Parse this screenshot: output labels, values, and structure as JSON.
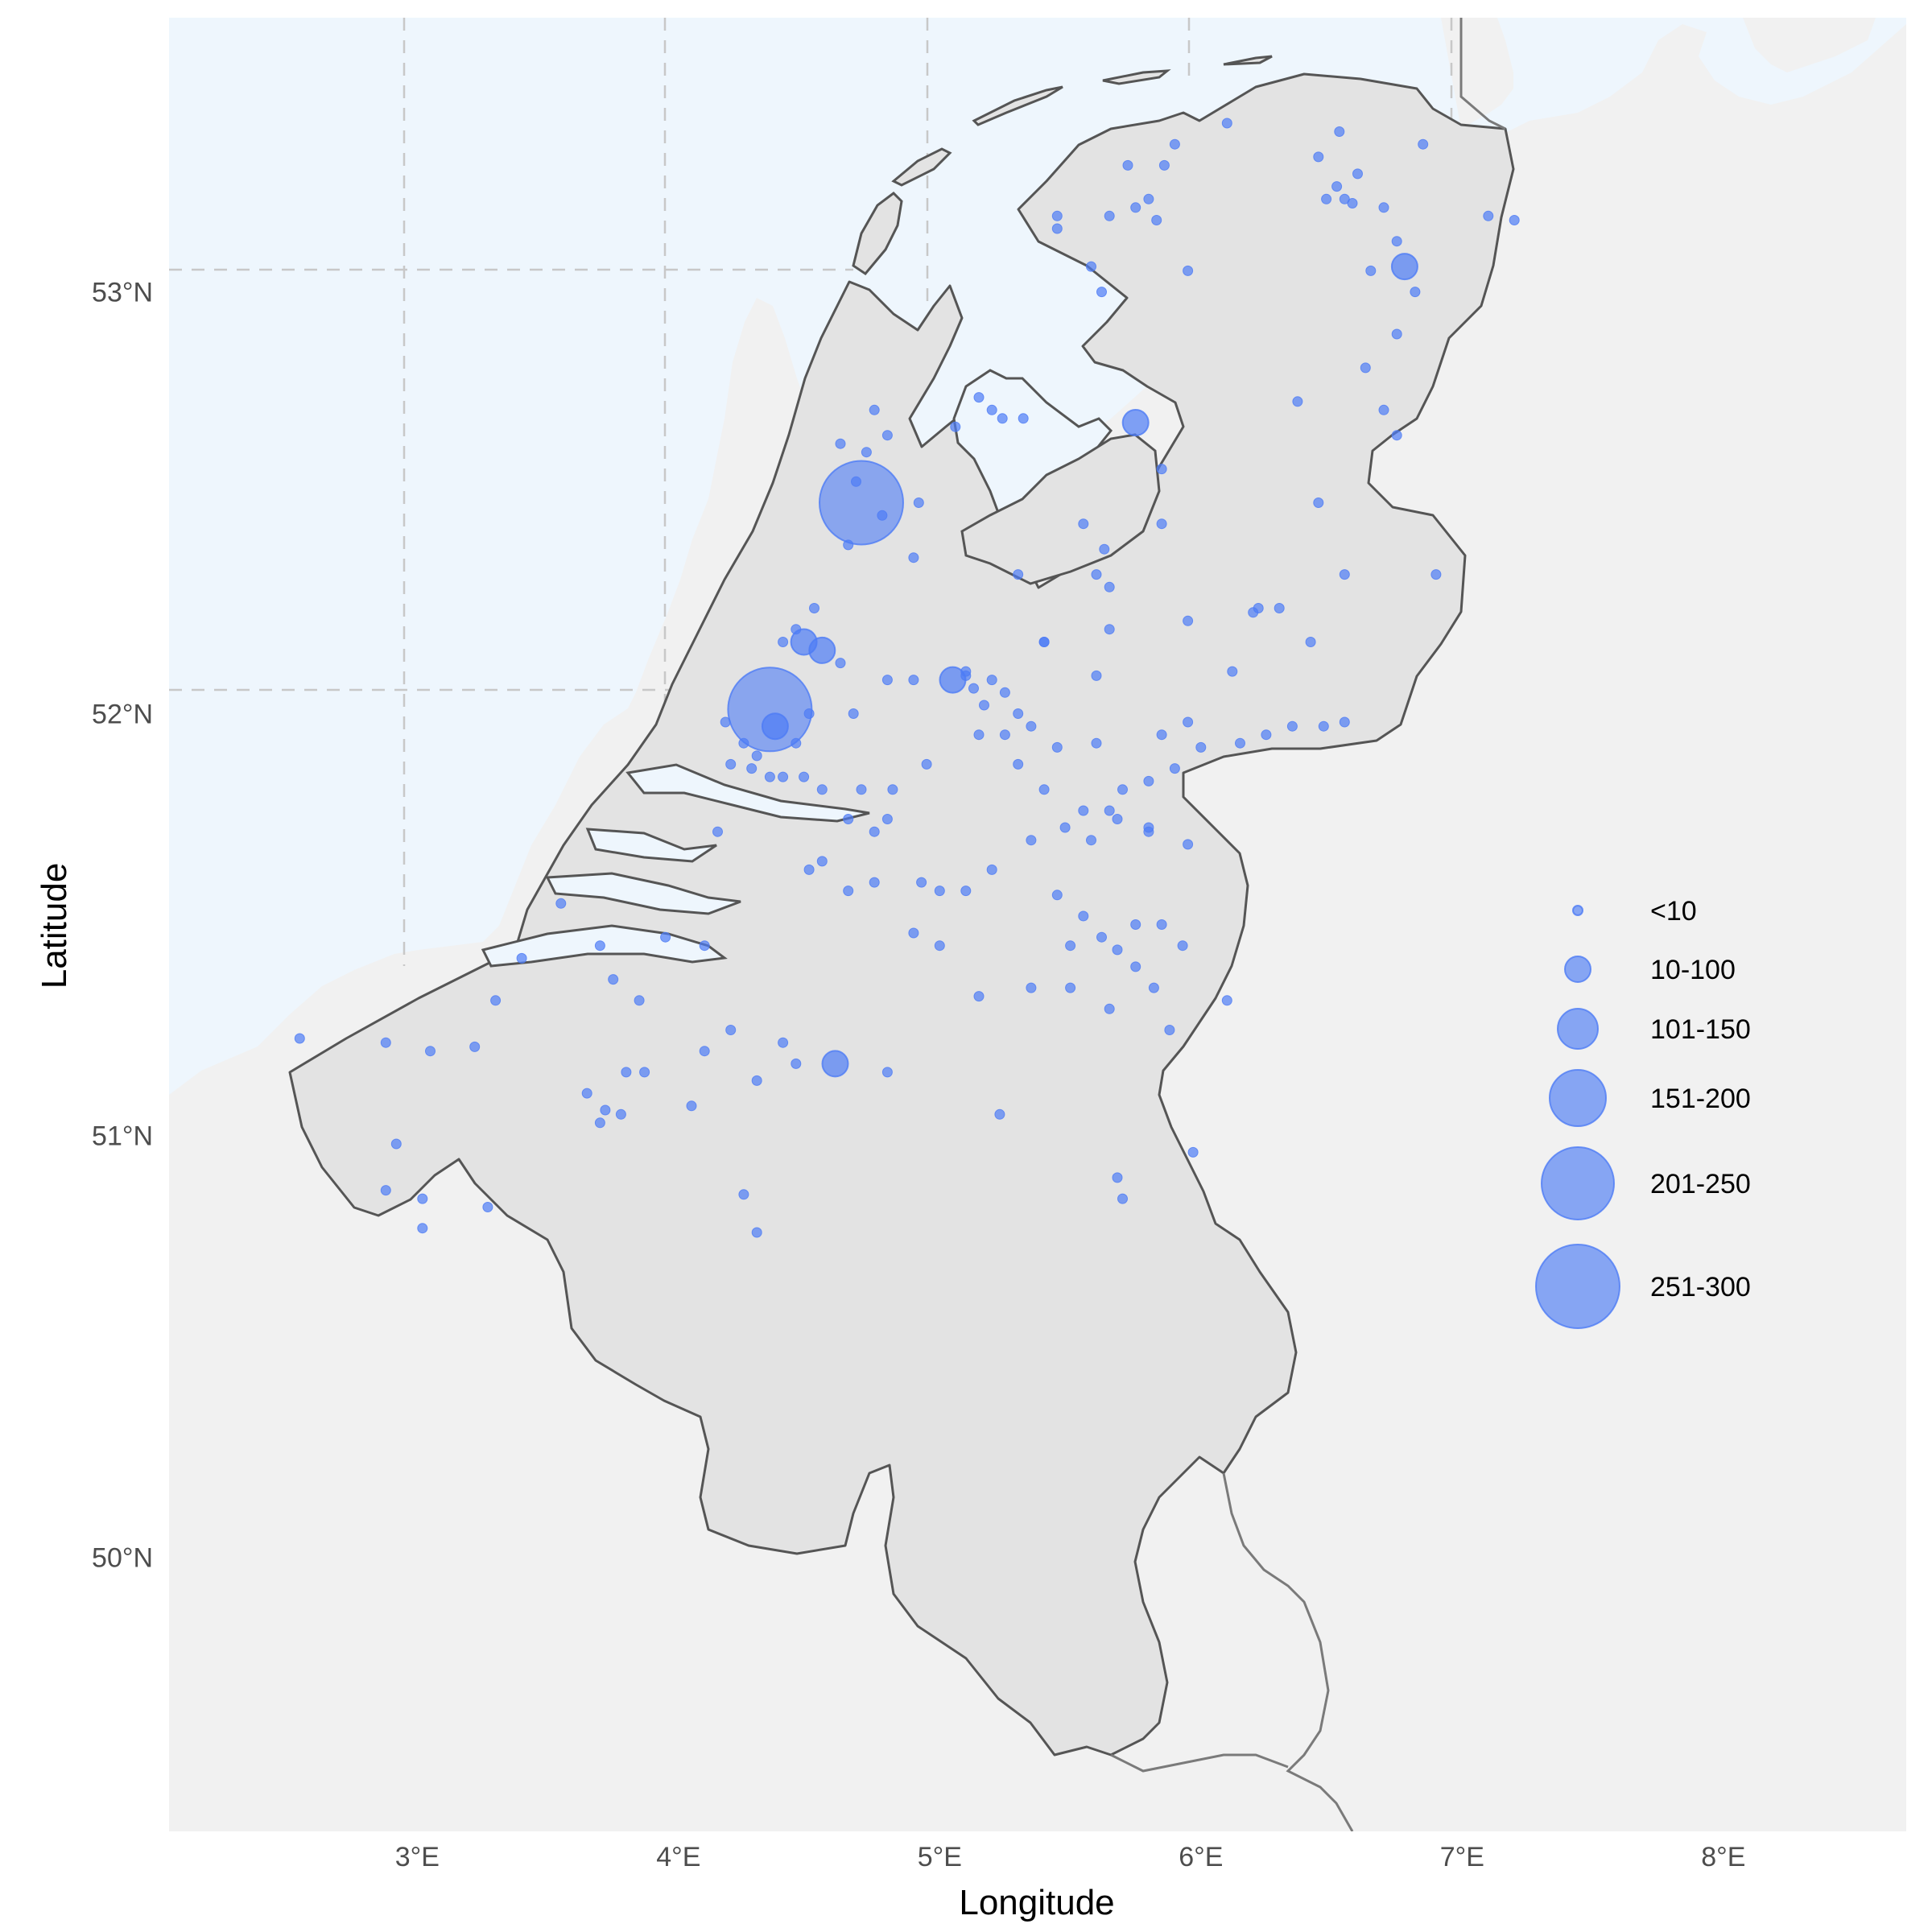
{
  "chart_data": {
    "type": "scatter",
    "subtype": "bubble-map",
    "region": "Netherlands and Belgium",
    "xlabel": "Longitude",
    "ylabel": "Latitude",
    "xlim": [
      2.05,
      8.7
    ],
    "ylim": [
      49.35,
      53.65
    ],
    "x_ticks": [
      3,
      4,
      5,
      6,
      7,
      8
    ],
    "x_tick_labels": [
      "3°E",
      "4°E",
      "5°E",
      "6°E",
      "7°E",
      "8°E"
    ],
    "y_ticks": [
      50,
      51,
      52,
      53
    ],
    "y_tick_labels": [
      "50°N",
      "51°N",
      "52°N",
      "53°N"
    ],
    "grid": "dashed, over sea only",
    "legend_position": "right",
    "colors": {
      "point": "#4d7cf5",
      "sea": "#eef6fd",
      "land": "#e3e3e3",
      "outside_land": "#f1f1f1",
      "border": "#555555"
    },
    "legend": [
      {
        "label": "<10",
        "size_class": 1
      },
      {
        "label": "10-100",
        "size_class": 2
      },
      {
        "label": "101-150",
        "size_class": 3
      },
      {
        "label": "151-200",
        "size_class": 4
      },
      {
        "label": "201-250",
        "size_class": 5
      },
      {
        "label": "251-300",
        "size_class": 6
      }
    ],
    "points": [
      [
        4.7,
        52.5,
        6
      ],
      [
        4.35,
        52.01,
        6
      ],
      [
        4.55,
        52.15,
        2
      ],
      [
        4.48,
        52.17,
        2
      ],
      [
        5.05,
        52.08,
        2
      ],
      [
        4.6,
        51.17,
        2
      ],
      [
        5.75,
        52.69,
        2
      ],
      [
        6.78,
        53.06,
        2
      ],
      [
        4.37,
        51.97,
        2
      ],
      [
        5.1,
        52.09,
        1
      ],
      [
        4.68,
        52.55,
        1
      ],
      [
        4.72,
        52.62,
        1
      ],
      [
        4.65,
        52.4,
        1
      ],
      [
        4.78,
        52.47,
        1
      ],
      [
        4.9,
        52.37,
        1
      ],
      [
        4.92,
        52.5,
        1
      ],
      [
        5.15,
        52.75,
        1
      ],
      [
        5.24,
        52.7,
        1
      ],
      [
        5.32,
        52.7,
        1
      ],
      [
        5.06,
        52.68,
        1
      ],
      [
        5.2,
        52.72,
        1
      ],
      [
        4.75,
        52.72,
        1
      ],
      [
        4.8,
        52.66,
        1
      ],
      [
        4.62,
        52.64,
        1
      ],
      [
        5.75,
        53.2,
        1
      ],
      [
        5.8,
        53.22,
        1
      ],
      [
        5.83,
        53.17,
        1
      ],
      [
        5.65,
        53.18,
        1
      ],
      [
        5.45,
        53.18,
        1
      ],
      [
        5.58,
        53.06,
        1
      ],
      [
        5.86,
        53.3,
        1
      ],
      [
        5.72,
        53.3,
        1
      ],
      [
        6.1,
        53.4,
        1
      ],
      [
        5.9,
        53.35,
        1
      ],
      [
        5.45,
        53.15,
        1
      ],
      [
        5.62,
        53.0,
        1
      ],
      [
        6.55,
        53.22,
        1
      ],
      [
        6.52,
        53.25,
        1
      ],
      [
        6.58,
        53.21,
        1
      ],
      [
        6.48,
        53.22,
        1
      ],
      [
        6.6,
        53.28,
        1
      ],
      [
        6.7,
        53.2,
        1
      ],
      [
        6.45,
        53.32,
        1
      ],
      [
        6.53,
        53.38,
        1
      ],
      [
        6.85,
        53.35,
        1
      ],
      [
        7.1,
        53.18,
        1
      ],
      [
        7.2,
        53.17,
        1
      ],
      [
        6.75,
        53.12,
        1
      ],
      [
        6.82,
        53.0,
        1
      ],
      [
        6.65,
        53.05,
        1
      ],
      [
        6.63,
        52.82,
        1
      ],
      [
        6.75,
        52.9,
        1
      ],
      [
        6.37,
        52.74,
        1
      ],
      [
        6.7,
        52.72,
        1
      ],
      [
        6.75,
        52.66,
        1
      ],
      [
        6.9,
        52.33,
        1
      ],
      [
        6.55,
        52.33,
        1
      ],
      [
        6.45,
        52.5,
        1
      ],
      [
        6.22,
        52.25,
        1
      ],
      [
        6.3,
        52.25,
        1
      ],
      [
        5.95,
        52.22,
        1
      ],
      [
        6.2,
        52.24,
        1
      ],
      [
        6.42,
        52.17,
        1
      ],
      [
        5.63,
        52.39,
        1
      ],
      [
        5.6,
        52.33,
        1
      ],
      [
        5.65,
        52.3,
        1
      ],
      [
        5.3,
        52.33,
        1
      ],
      [
        5.95,
        53.05,
        1
      ],
      [
        5.85,
        52.58,
        1
      ],
      [
        5.65,
        52.2,
        1
      ],
      [
        5.4,
        52.17,
        1
      ],
      [
        5.6,
        52.09,
        1
      ],
      [
        5.1,
        52.1,
        1
      ],
      [
        5.13,
        52.06,
        1
      ],
      [
        5.2,
        52.08,
        1
      ],
      [
        5.17,
        52.02,
        1
      ],
      [
        5.3,
        52.0,
        1
      ],
      [
        5.25,
        52.05,
        1
      ],
      [
        4.9,
        52.08,
        1
      ],
      [
        4.8,
        52.08,
        1
      ],
      [
        4.62,
        52.12,
        1
      ],
      [
        4.5,
        52.0,
        1
      ],
      [
        4.45,
        51.93,
        1
      ],
      [
        4.3,
        51.9,
        1
      ],
      [
        4.25,
        51.93,
        1
      ],
      [
        4.18,
        51.98,
        1
      ],
      [
        4.4,
        51.85,
        1
      ],
      [
        4.55,
        51.82,
        1
      ],
      [
        4.48,
        51.85,
        1
      ],
      [
        4.35,
        51.85,
        1
      ],
      [
        4.28,
        51.87,
        1
      ],
      [
        4.2,
        51.88,
        1
      ],
      [
        4.7,
        51.82,
        1
      ],
      [
        4.82,
        51.82,
        1
      ],
      [
        4.65,
        51.75,
        1
      ],
      [
        4.8,
        51.75,
        1
      ],
      [
        4.95,
        51.88,
        1
      ],
      [
        4.67,
        52.0,
        1
      ],
      [
        5.15,
        51.95,
        1
      ],
      [
        5.25,
        51.95,
        1
      ],
      [
        5.35,
        51.97,
        1
      ],
      [
        5.45,
        51.92,
        1
      ],
      [
        5.6,
        51.93,
        1
      ],
      [
        5.85,
        51.95,
        1
      ],
      [
        5.95,
        51.98,
        1
      ],
      [
        6.0,
        51.92,
        1
      ],
      [
        5.9,
        51.87,
        1
      ],
      [
        5.8,
        51.84,
        1
      ],
      [
        5.7,
        51.82,
        1
      ],
      [
        5.3,
        51.88,
        1
      ],
      [
        5.4,
        51.82,
        1
      ],
      [
        5.55,
        51.77,
        1
      ],
      [
        5.65,
        51.77,
        1
      ],
      [
        5.8,
        51.73,
        1
      ],
      [
        5.95,
        51.69,
        1
      ],
      [
        6.15,
        51.93,
        1
      ],
      [
        6.25,
        51.95,
        1
      ],
      [
        6.35,
        51.97,
        1
      ],
      [
        6.55,
        51.98,
        1
      ],
      [
        6.47,
        51.97,
        1
      ],
      [
        5.35,
        51.7,
        1
      ],
      [
        5.48,
        51.73,
        1
      ],
      [
        5.58,
        51.7,
        1
      ],
      [
        5.68,
        51.75,
        1
      ],
      [
        5.8,
        51.72,
        1
      ],
      [
        5.2,
        51.63,
        1
      ],
      [
        5.1,
        51.58,
        1
      ],
      [
        5.0,
        51.58,
        1
      ],
      [
        4.93,
        51.6,
        1
      ],
      [
        4.75,
        51.6,
        1
      ],
      [
        4.65,
        51.58,
        1
      ],
      [
        5.45,
        51.57,
        1
      ],
      [
        5.55,
        51.52,
        1
      ],
      [
        5.5,
        51.45,
        1
      ],
      [
        5.62,
        51.47,
        1
      ],
      [
        5.68,
        51.44,
        1
      ],
      [
        5.75,
        51.5,
        1
      ],
      [
        5.85,
        51.5,
        1
      ],
      [
        5.75,
        51.4,
        1
      ],
      [
        5.82,
        51.35,
        1
      ],
      [
        5.93,
        51.45,
        1
      ],
      [
        5.35,
        51.35,
        1
      ],
      [
        5.65,
        51.3,
        1
      ],
      [
        5.88,
        51.25,
        1
      ],
      [
        6.1,
        51.32,
        1
      ],
      [
        5.97,
        50.96,
        1
      ],
      [
        5.7,
        50.85,
        1
      ],
      [
        5.68,
        50.9,
        1
      ],
      [
        5.0,
        51.45,
        1
      ],
      [
        4.9,
        51.48,
        1
      ],
      [
        4.1,
        51.45,
        1
      ],
      [
        3.95,
        51.47,
        1
      ],
      [
        3.7,
        51.45,
        1
      ],
      [
        3.55,
        51.55,
        1
      ],
      [
        3.4,
        51.42,
        1
      ],
      [
        3.3,
        51.32,
        1
      ],
      [
        3.22,
        51.21,
        1
      ],
      [
        3.05,
        51.2,
        1
      ],
      [
        2.88,
        51.22,
        1
      ],
      [
        2.55,
        51.23,
        1
      ],
      [
        3.65,
        51.1,
        1
      ],
      [
        3.72,
        51.06,
        1
      ],
      [
        3.78,
        51.05,
        1
      ],
      [
        3.7,
        51.03,
        1
      ],
      [
        3.8,
        51.15,
        1
      ],
      [
        3.87,
        51.15,
        1
      ],
      [
        4.05,
        51.07,
        1
      ],
      [
        4.1,
        51.2,
        1
      ],
      [
        4.2,
        51.25,
        1
      ],
      [
        4.4,
        51.22,
        1
      ],
      [
        4.45,
        51.17,
        1
      ],
      [
        4.3,
        51.13,
        1
      ],
      [
        4.8,
        51.15,
        1
      ],
      [
        5.23,
        51.05,
        1
      ],
      [
        4.25,
        50.86,
        1
      ],
      [
        4.3,
        50.77,
        1
      ],
      [
        3.27,
        50.83,
        1
      ],
      [
        3.02,
        50.85,
        1
      ],
      [
        2.92,
        50.98,
        1
      ],
      [
        2.88,
        50.87,
        1
      ],
      [
        3.02,
        50.78,
        1
      ],
      [
        4.45,
        52.2,
        1
      ],
      [
        4.52,
        52.25,
        1
      ],
      [
        4.4,
        52.17,
        1
      ],
      [
        5.85,
        52.45,
        1
      ],
      [
        5.55,
        52.45,
        1
      ],
      [
        6.12,
        52.1,
        1
      ],
      [
        5.4,
        52.17,
        1
      ],
      [
        4.55,
        51.65,
        1
      ],
      [
        4.75,
        51.72,
        1
      ],
      [
        4.5,
        51.63,
        1
      ],
      [
        3.75,
        51.37,
        1
      ],
      [
        3.85,
        51.32,
        1
      ],
      [
        5.15,
        51.33,
        1
      ],
      [
        5.5,
        51.35,
        1
      ],
      [
        4.15,
        51.72,
        1
      ]
    ]
  }
}
